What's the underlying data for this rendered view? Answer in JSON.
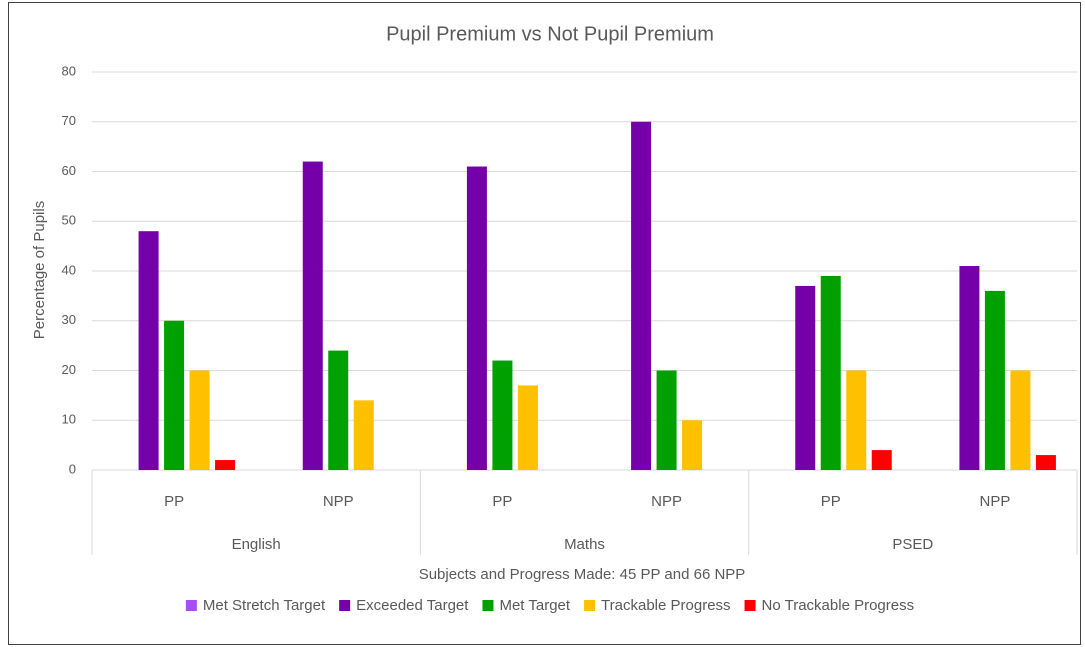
{
  "chart_data": {
    "type": "bar",
    "title": "Pupil Premium vs Not Pupil Premium",
    "x_label": "Subjects and Progress Made: 45 PP and 66 NPP",
    "y_label": "Percentage of Pupils",
    "groups": [
      "English",
      "Maths",
      "PSED"
    ],
    "categories": [
      "PP",
      "NPP",
      "PP",
      "NPP",
      "PP",
      "NPP"
    ],
    "series": [
      {
        "name": "Met Stretch Target",
        "color": "#a64ef2",
        "values": [
          0,
          0,
          0,
          0,
          0,
          0
        ]
      },
      {
        "name": "Exceeded Target",
        "color": "#7500aa",
        "values": [
          48,
          62,
          61,
          70,
          37,
          41
        ]
      },
      {
        "name": "Met Target",
        "color": "#00a000",
        "values": [
          30,
          24,
          22,
          20,
          39,
          36
        ]
      },
      {
        "name": "Trackable Progress",
        "color": "#ffc000",
        "values": [
          20,
          14,
          17,
          10,
          20,
          20
        ]
      },
      {
        "name": "No Trackable Progress",
        "color": "#ff0000",
        "values": [
          2,
          0,
          0,
          0,
          4,
          3
        ]
      }
    ],
    "ylim": [
      0,
      80
    ],
    "yticks": [
      0,
      10,
      20,
      30,
      40,
      50,
      60,
      70,
      80
    ],
    "grid": true,
    "legend": "bottom"
  }
}
